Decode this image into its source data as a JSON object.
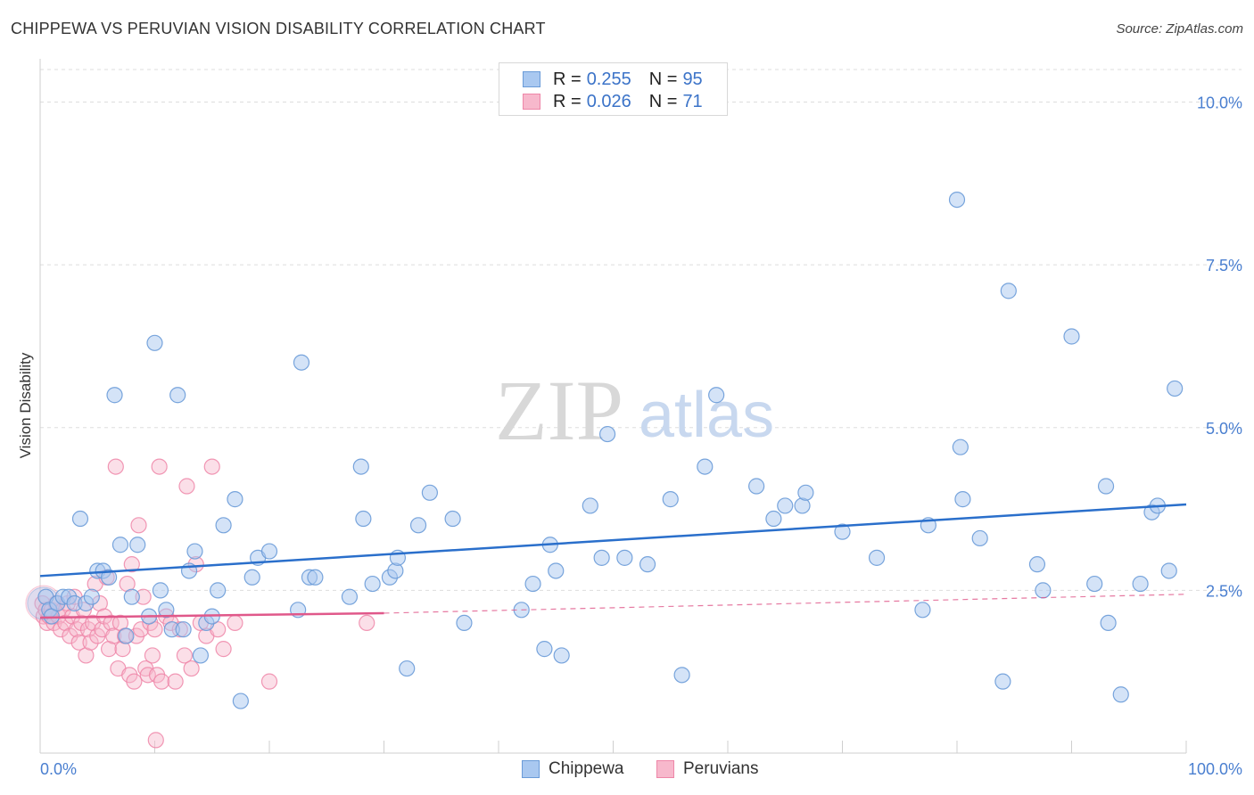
{
  "header": {
    "title": "CHIPPEWA VS PERUVIAN VISION DISABILITY CORRELATION CHART",
    "source": "Source: ZipAtlas.com"
  },
  "watermark": {
    "zip": "ZIP",
    "atlas": "atlas"
  },
  "legend": {
    "rows": [
      {
        "r_label": "R =",
        "r_value": "0.255",
        "n_label": "N =",
        "n_value": "95"
      },
      {
        "r_label": "R =",
        "r_value": "0.026",
        "n_label": "N =",
        "n_value": "71"
      }
    ]
  },
  "colors": {
    "chippewa_fill": "#a9c8f0",
    "chippewa_stroke": "#6a9bd8",
    "chippewa_line": "#2a6fcb",
    "peruvian_fill": "#f7b8cc",
    "peruvian_stroke": "#ee86a8",
    "peruvian_line": "#e0588a",
    "grid": "#dddddd",
    "tick_text": "#4a7fd0"
  },
  "chart_data": {
    "type": "scatter",
    "title": "CHIPPEWA VS PERUVIAN VISION DISABILITY CORRELATION CHART",
    "xlabel": "",
    "ylabel": "Vision Disability",
    "xlim": [
      0,
      100
    ],
    "ylim": [
      0,
      10.5
    ],
    "x_tick_labels": [
      "0.0%",
      "100.0%"
    ],
    "y_ticks": [
      2.5,
      5.0,
      7.5,
      10.0
    ],
    "y_tick_labels": [
      "2.5%",
      "5.0%",
      "7.5%",
      "10.0%"
    ],
    "grid": true,
    "legend_position": "top-center",
    "series": [
      {
        "name": "Chippewa",
        "r": 0.255,
        "n": 95,
        "trend": {
          "x": [
            0,
            100
          ],
          "y": [
            2.72,
            3.82
          ],
          "dashed_from": null
        },
        "points": [
          [
            0.5,
            2.4
          ],
          [
            0.8,
            2.2
          ],
          [
            1.0,
            2.1
          ],
          [
            1.5,
            2.3
          ],
          [
            2.0,
            2.4
          ],
          [
            2.5,
            2.4
          ],
          [
            3.0,
            2.3
          ],
          [
            3.5,
            3.6
          ],
          [
            4.0,
            2.3
          ],
          [
            4.5,
            2.4
          ],
          [
            5.0,
            2.8
          ],
          [
            5.5,
            2.8
          ],
          [
            6.0,
            2.7
          ],
          [
            6.5,
            5.5
          ],
          [
            7.0,
            3.2
          ],
          [
            7.5,
            1.8
          ],
          [
            8.0,
            2.4
          ],
          [
            8.5,
            3.2
          ],
          [
            9.5,
            2.1
          ],
          [
            10.0,
            6.3
          ],
          [
            10.5,
            2.5
          ],
          [
            11.0,
            2.2
          ],
          [
            11.5,
            1.9
          ],
          [
            12.0,
            5.5
          ],
          [
            12.5,
            1.9
          ],
          [
            13.0,
            2.8
          ],
          [
            13.5,
            3.1
          ],
          [
            14.0,
            1.5
          ],
          [
            14.5,
            2.0
          ],
          [
            15.0,
            2.1
          ],
          [
            15.5,
            2.5
          ],
          [
            16.0,
            3.5
          ],
          [
            17.0,
            3.9
          ],
          [
            17.5,
            0.8
          ],
          [
            18.5,
            2.7
          ],
          [
            19.0,
            3.0
          ],
          [
            20.0,
            3.1
          ],
          [
            22.5,
            2.2
          ],
          [
            22.8,
            6.0
          ],
          [
            23.5,
            2.7
          ],
          [
            24.0,
            2.7
          ],
          [
            27.0,
            2.4
          ],
          [
            28.0,
            4.4
          ],
          [
            28.2,
            3.6
          ],
          [
            29.0,
            2.6
          ],
          [
            30.5,
            2.7
          ],
          [
            31.0,
            2.8
          ],
          [
            31.2,
            3.0
          ],
          [
            32.0,
            1.3
          ],
          [
            33.0,
            3.5
          ],
          [
            34.0,
            4.0
          ],
          [
            36.0,
            3.6
          ],
          [
            37.0,
            2.0
          ],
          [
            42.0,
            2.2
          ],
          [
            43.0,
            2.6
          ],
          [
            44.0,
            1.6
          ],
          [
            44.5,
            3.2
          ],
          [
            45.0,
            2.8
          ],
          [
            45.5,
            1.5
          ],
          [
            48.0,
            3.8
          ],
          [
            49.0,
            3.0
          ],
          [
            49.5,
            4.9
          ],
          [
            51.0,
            3.0
          ],
          [
            53.0,
            2.9
          ],
          [
            55.0,
            3.9
          ],
          [
            56.0,
            1.2
          ],
          [
            58.0,
            4.4
          ],
          [
            59.0,
            5.5
          ],
          [
            62.5,
            4.1
          ],
          [
            64.0,
            3.6
          ],
          [
            65.0,
            3.8
          ],
          [
            66.5,
            3.8
          ],
          [
            66.8,
            4.0
          ],
          [
            70.0,
            3.4
          ],
          [
            73.0,
            3.0
          ],
          [
            77.0,
            2.2
          ],
          [
            77.5,
            3.5
          ],
          [
            80.0,
            8.5
          ],
          [
            80.3,
            4.7
          ],
          [
            80.5,
            3.9
          ],
          [
            82.0,
            3.3
          ],
          [
            84.0,
            1.1
          ],
          [
            84.5,
            7.1
          ],
          [
            87.0,
            2.9
          ],
          [
            87.5,
            2.5
          ],
          [
            90.0,
            6.4
          ],
          [
            92.0,
            2.6
          ],
          [
            93.0,
            4.1
          ],
          [
            93.2,
            2.0
          ],
          [
            94.3,
            0.9
          ],
          [
            96.0,
            2.6
          ],
          [
            97.0,
            3.7
          ],
          [
            97.5,
            3.8
          ],
          [
            98.5,
            2.8
          ],
          [
            99.0,
            5.6
          ]
        ]
      },
      {
        "name": "Peruvians",
        "r": 0.026,
        "n": 71,
        "trend": {
          "x": [
            0,
            30
          ],
          "y": [
            2.08,
            2.15
          ],
          "dashed_to": [
            100,
            2.44
          ]
        },
        "points": [
          [
            0.2,
            2.3
          ],
          [
            0.3,
            2.1
          ],
          [
            0.5,
            2.2
          ],
          [
            0.6,
            2.0
          ],
          [
            0.8,
            2.1
          ],
          [
            1.0,
            2.2
          ],
          [
            1.2,
            2.0
          ],
          [
            1.4,
            2.3
          ],
          [
            1.6,
            2.1
          ],
          [
            1.8,
            1.9
          ],
          [
            2.0,
            2.2
          ],
          [
            2.2,
            2.0
          ],
          [
            2.4,
            2.3
          ],
          [
            2.6,
            1.8
          ],
          [
            2.8,
            2.1
          ],
          [
            3.0,
            2.4
          ],
          [
            3.2,
            1.9
          ],
          [
            3.4,
            1.7
          ],
          [
            3.6,
            2.0
          ],
          [
            3.8,
            2.2
          ],
          [
            4.0,
            1.5
          ],
          [
            4.2,
            1.9
          ],
          [
            4.4,
            1.7
          ],
          [
            4.6,
            2.0
          ],
          [
            4.8,
            2.6
          ],
          [
            5.0,
            1.8
          ],
          [
            5.2,
            2.3
          ],
          [
            5.4,
            1.9
          ],
          [
            5.6,
            2.1
          ],
          [
            5.8,
            2.7
          ],
          [
            6.0,
            1.6
          ],
          [
            6.2,
            2.0
          ],
          [
            6.4,
            1.8
          ],
          [
            6.6,
            4.4
          ],
          [
            6.8,
            1.3
          ],
          [
            7.0,
            2.0
          ],
          [
            7.2,
            1.6
          ],
          [
            7.4,
            1.8
          ],
          [
            7.6,
            2.6
          ],
          [
            7.8,
            1.2
          ],
          [
            8.0,
            2.9
          ],
          [
            8.2,
            1.1
          ],
          [
            8.4,
            1.8
          ],
          [
            8.6,
            3.5
          ],
          [
            8.8,
            1.9
          ],
          [
            9.0,
            2.4
          ],
          [
            9.2,
            1.3
          ],
          [
            9.4,
            1.2
          ],
          [
            9.6,
            2.0
          ],
          [
            9.8,
            1.5
          ],
          [
            10.0,
            1.9
          ],
          [
            10.2,
            1.2
          ],
          [
            10.4,
            4.4
          ],
          [
            10.6,
            1.1
          ],
          [
            11.0,
            2.1
          ],
          [
            11.4,
            2.0
          ],
          [
            11.8,
            1.1
          ],
          [
            12.2,
            1.9
          ],
          [
            12.6,
            1.5
          ],
          [
            12.8,
            4.1
          ],
          [
            13.2,
            1.3
          ],
          [
            13.6,
            2.9
          ],
          [
            14.0,
            2.0
          ],
          [
            14.5,
            1.8
          ],
          [
            15.0,
            4.4
          ],
          [
            15.5,
            1.9
          ],
          [
            16.0,
            1.6
          ],
          [
            17.0,
            2.0
          ],
          [
            20.0,
            1.1
          ],
          [
            28.5,
            2.0
          ],
          [
            10.1,
            0.2
          ]
        ]
      }
    ]
  },
  "bottom_legend": {
    "items": [
      "Chippewa",
      "Peruvians"
    ]
  }
}
